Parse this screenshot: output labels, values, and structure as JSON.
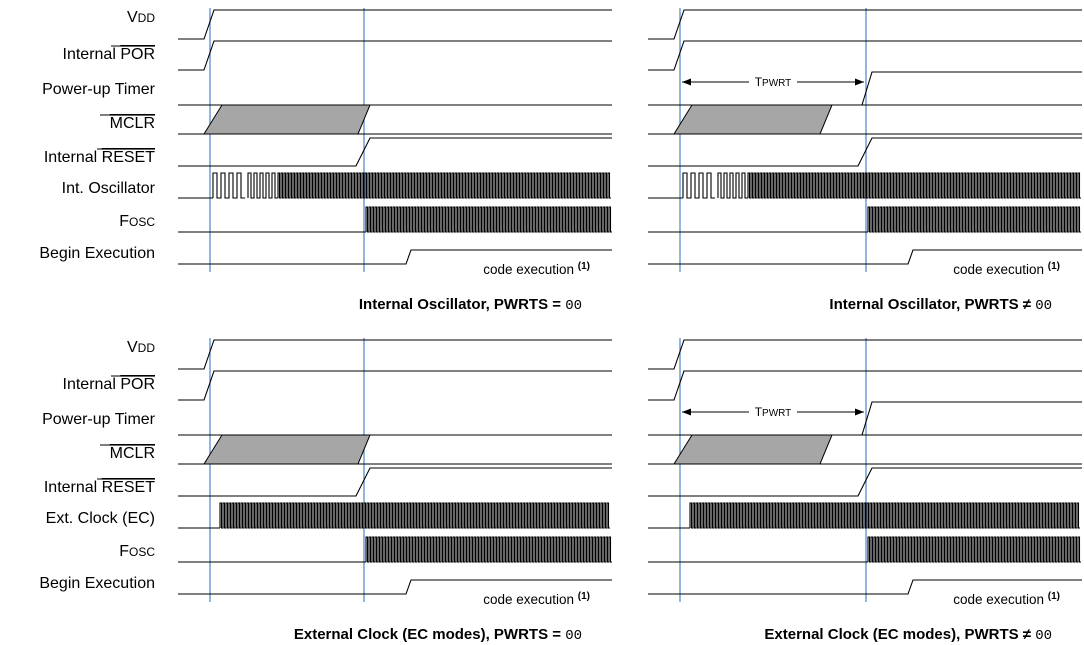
{
  "signals_standard": [
    {
      "main": "V",
      "sc": "DD",
      "overline": false
    },
    {
      "main": "Internal ",
      "ov": "POR"
    },
    {
      "main": "Power-up Timer"
    },
    {
      "ov": "MCLR"
    },
    {
      "main": "Internal ",
      "ov": "RESET"
    },
    {
      "main": "Int. Oscillator"
    },
    {
      "main": "F",
      "sc": "OSC"
    },
    {
      "main": "Begin Execution"
    }
  ],
  "signals_ec_clock_label": "Ext. Clock (EC)",
  "tpwrt_label": {
    "main": "T",
    "sc": "PWRT"
  },
  "code_execution_label": "code execution",
  "footnote_ref": "(1)",
  "panels": [
    {
      "id": "int-osc-pwrts-00",
      "caption_text": "Internal Oscillator, PWRTS",
      "operator": "=",
      "value": "00",
      "clock": "internal",
      "has_timer": false
    },
    {
      "id": "int-osc-pwrts-ne-00",
      "caption_text": "Internal Oscillator, PWRTS",
      "operator": "≠",
      "value": "00",
      "clock": "internal",
      "has_timer": true
    },
    {
      "id": "ec-pwrts-00",
      "caption_text": "External Clock (EC modes), PWRTS",
      "operator": "=",
      "value": "00",
      "clock": "external",
      "has_timer": false
    },
    {
      "id": "ec-pwrts-ne-00",
      "caption_text": "External Clock (EC modes), PWRTS",
      "operator": "≠",
      "value": "00",
      "clock": "external",
      "has_timer": true
    }
  ],
  "colors": {
    "marker": "#4a86c8",
    "mclr_fill": "#a6a6a6",
    "line": "#000000"
  }
}
